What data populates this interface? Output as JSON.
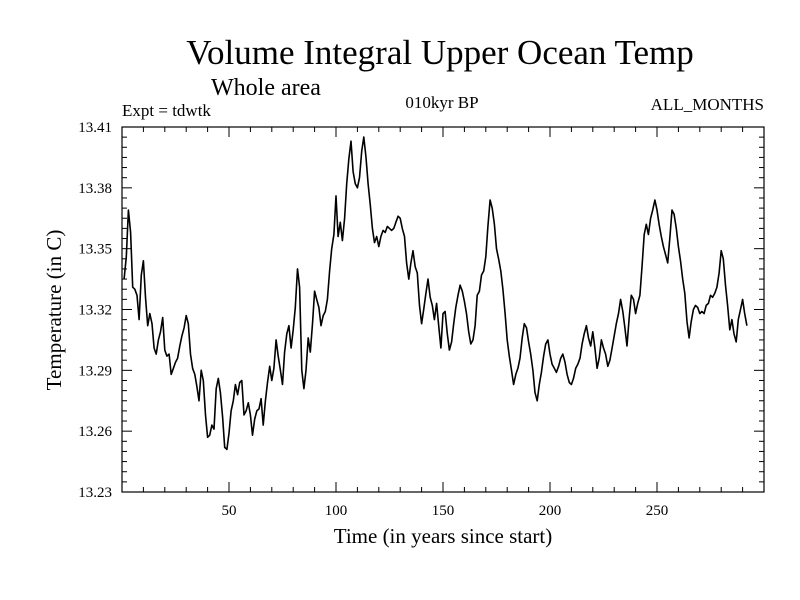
{
  "chart_data": {
    "type": "line",
    "title": "Volume Integral Upper Ocean Temp",
    "subtitle": "Whole area",
    "annotations": {
      "experiment": "Expt = tdwtk",
      "period": "010kyr BP",
      "months": "ALL_MONTHS"
    },
    "xlabel": "Time (in years since start)",
    "ylabel": "Temperature (in C)",
    "xlim": [
      0,
      300
    ],
    "ylim": [
      13.23,
      13.41
    ],
    "x_ticks": [
      50,
      100,
      150,
      200,
      250
    ],
    "y_ticks": [
      "13.23",
      "13.26",
      "13.29",
      "13.32",
      "13.35",
      "13.38",
      "13.41"
    ],
    "grid": false,
    "series": [
      {
        "name": "Volume integral upper ocean temperature",
        "x_start": 1,
        "x_step": 1,
        "values": [
          13.335,
          13.346,
          13.369,
          13.358,
          13.331,
          13.33,
          13.327,
          13.315,
          13.337,
          13.344,
          13.326,
          13.312,
          13.318,
          13.313,
          13.301,
          13.298,
          13.305,
          13.309,
          13.316,
          13.3,
          13.297,
          13.298,
          13.288,
          13.291,
          13.294,
          13.296,
          13.302,
          13.307,
          13.311,
          13.317,
          13.313,
          13.298,
          13.291,
          13.288,
          13.282,
          13.275,
          13.29,
          13.285,
          13.268,
          13.257,
          13.258,
          13.263,
          13.261,
          13.281,
          13.286,
          13.279,
          13.267,
          13.252,
          13.251,
          13.259,
          13.27,
          13.275,
          13.283,
          13.278,
          13.284,
          13.285,
          13.268,
          13.27,
          13.274,
          13.268,
          13.258,
          13.266,
          13.27,
          13.271,
          13.276,
          13.263,
          13.275,
          13.284,
          13.292,
          13.285,
          13.291,
          13.305,
          13.297,
          13.29,
          13.283,
          13.299,
          13.308,
          13.312,
          13.301,
          13.31,
          13.321,
          13.34,
          13.331,
          13.29,
          13.281,
          13.29,
          13.306,
          13.299,
          13.313,
          13.329,
          13.325,
          13.321,
          13.312,
          13.317,
          13.319,
          13.325,
          13.339,
          13.35,
          13.357,
          13.376,
          13.356,
          13.363,
          13.354,
          13.365,
          13.382,
          13.394,
          13.403,
          13.388,
          13.382,
          13.38,
          13.385,
          13.398,
          13.405,
          13.395,
          13.382,
          13.372,
          13.36,
          13.353,
          13.356,
          13.351,
          13.356,
          13.359,
          13.358,
          13.361,
          13.36,
          13.359,
          13.36,
          13.363,
          13.366,
          13.365,
          13.36,
          13.356,
          13.343,
          13.335,
          13.343,
          13.349,
          13.341,
          13.338,
          13.322,
          13.313,
          13.32,
          13.328,
          13.335,
          13.326,
          13.322,
          13.315,
          13.323,
          13.312,
          13.301,
          13.318,
          13.319,
          13.308,
          13.3,
          13.304,
          13.313,
          13.321,
          13.327,
          13.332,
          13.329,
          13.324,
          13.318,
          13.309,
          13.303,
          13.305,
          13.312,
          13.327,
          13.329,
          13.337,
          13.339,
          13.346,
          13.361,
          13.374,
          13.37,
          13.362,
          13.35,
          13.345,
          13.339,
          13.33,
          13.318,
          13.305,
          13.297,
          13.29,
          13.283,
          13.288,
          13.291,
          13.296,
          13.306,
          13.313,
          13.311,
          13.304,
          13.298,
          13.29,
          13.279,
          13.275,
          13.283,
          13.289,
          13.297,
          13.303,
          13.305,
          13.298,
          13.293,
          13.291,
          13.289,
          13.292,
          13.296,
          13.298,
          13.294,
          13.288,
          13.284,
          13.283,
          13.286,
          13.291,
          13.293,
          13.296,
          13.303,
          13.308,
          13.312,
          13.306,
          13.302,
          13.309,
          13.301,
          13.291,
          13.296,
          13.305,
          13.301,
          13.298,
          13.292,
          13.295,
          13.301,
          13.307,
          13.313,
          13.318,
          13.325,
          13.319,
          13.311,
          13.302,
          13.316,
          13.327,
          13.325,
          13.318,
          13.323,
          13.327,
          13.341,
          13.357,
          13.362,
          13.357,
          13.365,
          13.369,
          13.374,
          13.369,
          13.362,
          13.356,
          13.351,
          13.347,
          13.343,
          13.355,
          13.369,
          13.367,
          13.36,
          13.351,
          13.344,
          13.335,
          13.328,
          13.314,
          13.306,
          13.314,
          13.32,
          13.322,
          13.321,
          13.318,
          13.319,
          13.318,
          13.322,
          13.323,
          13.327,
          13.326,
          13.328,
          13.331,
          13.338,
          13.349,
          13.345,
          13.332,
          13.322,
          13.31,
          13.315,
          13.308,
          13.304,
          13.315,
          13.32,
          13.325,
          13.318,
          13.312
        ]
      }
    ]
  }
}
